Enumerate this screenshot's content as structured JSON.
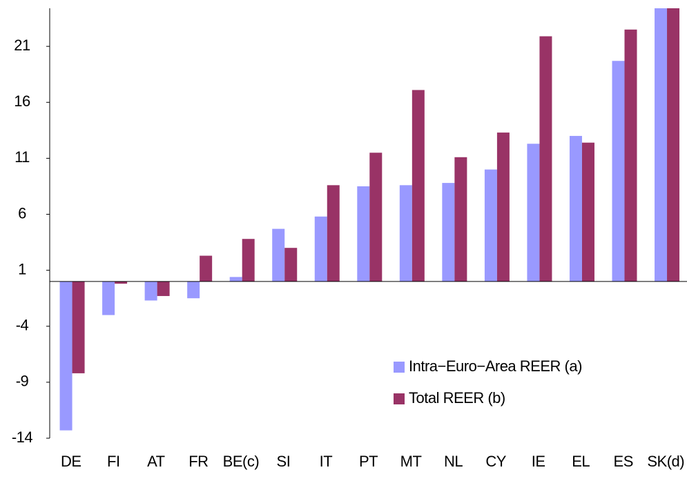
{
  "chart_data": {
    "type": "bar",
    "categories": [
      "DE",
      "FI",
      "AT",
      "FR",
      "BE(c)",
      "SI",
      "IT",
      "PT",
      "MT",
      "NL",
      "CY",
      "IE",
      "EL",
      "ES",
      "SK(d)"
    ],
    "series": [
      {
        "name": "Intra−Euro−Area REER (a)",
        "color": "#9999ff",
        "values": [
          -13.3,
          -3.0,
          -1.7,
          -1.5,
          0.4,
          4.7,
          5.8,
          8.5,
          8.6,
          8.8,
          10.0,
          12.3,
          13.0,
          19.7,
          25
        ]
      },
      {
        "name": "Total REER (b)",
        "color": "#993366",
        "values": [
          -8.2,
          -0.2,
          -1.3,
          2.3,
          3.8,
          3.0,
          8.6,
          11.5,
          17.1,
          11.1,
          13.3,
          21.9,
          12.4,
          22.5,
          25
        ]
      }
    ],
    "ylim": [
      -14,
      24.4
    ],
    "yticks": [
      -14,
      -9,
      -4,
      1,
      6,
      11,
      16,
      21
    ]
  }
}
